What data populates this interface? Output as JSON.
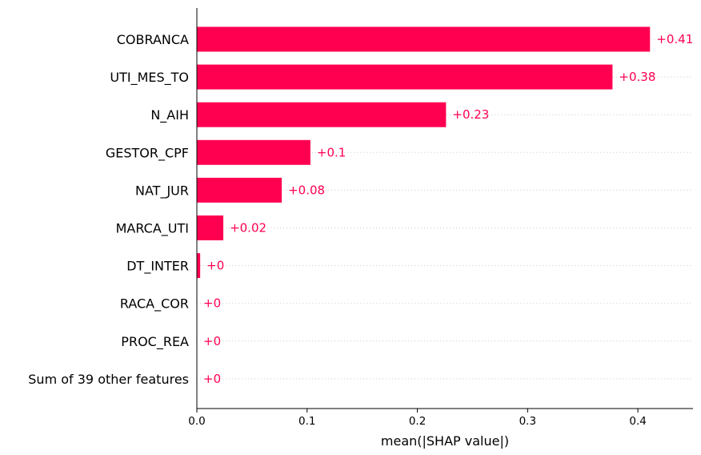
{
  "chart_data": {
    "type": "bar",
    "orientation": "horizontal",
    "categories": [
      "COBRANCA",
      "UTI_MES_TO",
      "N_AIH",
      "GESTOR_CPF",
      "NAT_JUR",
      "MARCA_UTI",
      "DT_INTER",
      "RACA_COR",
      "PROC_REA",
      "Sum of 39 other features"
    ],
    "values": [
      0.411,
      0.377,
      0.226,
      0.103,
      0.077,
      0.024,
      0.003,
      0.0,
      0.0,
      0.0
    ],
    "data_labels": [
      "+0.41",
      "+0.38",
      "+0.23",
      "+0.1",
      "+0.08",
      "+0.02",
      "+0",
      "+0",
      "+0",
      "+0"
    ],
    "title": "",
    "xlabel": "mean(|SHAP value|)",
    "ylabel": "",
    "xlim": [
      0,
      0.45
    ],
    "xticks": [
      0.0,
      0.1,
      0.2,
      0.3,
      0.4
    ],
    "xtick_labels": [
      "0.0",
      "0.1",
      "0.2",
      "0.3",
      "0.4"
    ],
    "grid": "horizontal dotted lines per bar",
    "legend": "none",
    "colors": {
      "bar": "#ff0051",
      "label": "#ff0051",
      "grid": "#cccccc",
      "axis": "#000000"
    }
  }
}
